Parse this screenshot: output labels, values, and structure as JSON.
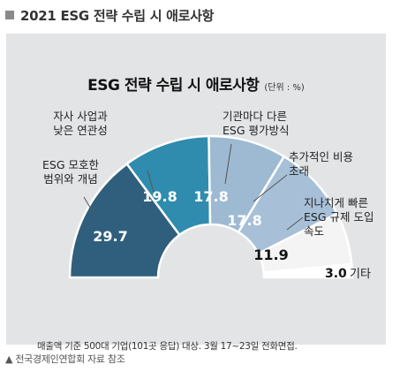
{
  "header": {
    "title": "2021 ESG 전략 수립 시 애로사항"
  },
  "chart_data": {
    "type": "pie",
    "variant": "half-donut",
    "title": "ESG 전략 수립 시 애로사항",
    "unit": "(단위 : %)",
    "categories": [
      "ESG 모호한 범위와 개념",
      "자사 사업과 낮은 연관성",
      "기관마다 다른 ESG 평가방식",
      "추가적인 비용 초래",
      "지나치게 빠른 ESG 규제 도입 속도",
      "기타"
    ],
    "values": [
      29.7,
      19.8,
      17.8,
      17.8,
      11.9,
      3.0
    ],
    "value_labels": [
      "29.7",
      "19.8",
      "17.8",
      "17.8",
      "11.9",
      "3.0"
    ],
    "category_lines": [
      [
        "ESG 모호한",
        "범위와 개념"
      ],
      [
        "자사 사업과",
        "낮은 연관성"
      ],
      [
        "기관마다 다른",
        "ESG 평가방식"
      ],
      [
        "추가적인 비용",
        "초래"
      ],
      [
        "지나치게 빠른",
        "ESG 규제 도입",
        "속도"
      ],
      [
        "기타"
      ]
    ],
    "colors": [
      "#2f5f7d",
      "#2f8cae",
      "#9dbad2",
      "#a7c0d8",
      "#f4f4f4",
      "#ffffff"
    ],
    "label_colors": [
      "#ffffff",
      "#ffffff",
      "#ffffff",
      "#ffffff",
      "#111111",
      "#111111"
    ]
  },
  "note": "매출액 기준 500대 기업(101곳 응답) 대상. 3월 17~23일 전화면접.",
  "footer": "▲ 전국경제인연합회 자료 참조"
}
